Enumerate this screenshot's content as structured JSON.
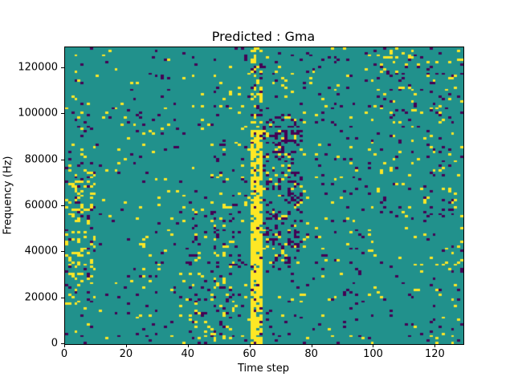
{
  "chart_data": {
    "type": "heatmap",
    "title": "Predicted : Gma",
    "xlabel": "Time step",
    "ylabel": "Frequency (Hz)",
    "x_ticks": [
      0,
      20,
      40,
      60,
      80,
      100,
      120
    ],
    "y_ticks": [
      0,
      20000,
      40000,
      60000,
      80000,
      100000,
      120000
    ],
    "x_range": [
      0,
      129
    ],
    "y_range": [
      0,
      129000
    ],
    "grid": false,
    "legend": "none",
    "value_levels": [
      {
        "value": 0,
        "color": "#440154",
        "meaning": "low"
      },
      {
        "value": 1,
        "color": "#21918c",
        "meaning": "mid / background"
      },
      {
        "value": 2,
        "color": "#fde725",
        "meaning": "high"
      }
    ],
    "background_color": "#21918c",
    "noise": {
      "seed": 1234,
      "p_yellow": 0.025,
      "p_dark": 0.03
    },
    "regions": [
      {
        "x": [
          60,
          64
        ],
        "y": [
          0,
          93
        ],
        "p_yellow": 0.8,
        "p_dark": 0.06,
        "note": "bright yellow vertical band around time step 60-63"
      },
      {
        "x": [
          60,
          64
        ],
        "y": [
          93,
          129
        ],
        "p_yellow": 0.25,
        "p_dark": 0.08,
        "note": "band continues weakly above 93 kHz"
      },
      {
        "x": [
          64,
          77
        ],
        "y": [
          35,
          100
        ],
        "p_yellow": 0.06,
        "p_dark": 0.22,
        "note": "dark purple cluster just right of the band"
      },
      {
        "x": [
          0,
          10
        ],
        "y": [
          15,
          75
        ],
        "p_yellow": 0.16,
        "p_dark": 0.07,
        "note": "yellow speckle near left edge 15-75 kHz"
      },
      {
        "x": [
          40,
          55
        ],
        "y": [
          0,
          60
        ],
        "p_yellow": 0.08,
        "p_dark": 0.08,
        "note": "mixed speckle mid-left lower half"
      },
      {
        "x": [
          100,
          129
        ],
        "y": [
          55,
          129
        ],
        "p_yellow": 0.05,
        "p_dark": 0.05,
        "note": "sparse speckle upper right"
      }
    ]
  }
}
